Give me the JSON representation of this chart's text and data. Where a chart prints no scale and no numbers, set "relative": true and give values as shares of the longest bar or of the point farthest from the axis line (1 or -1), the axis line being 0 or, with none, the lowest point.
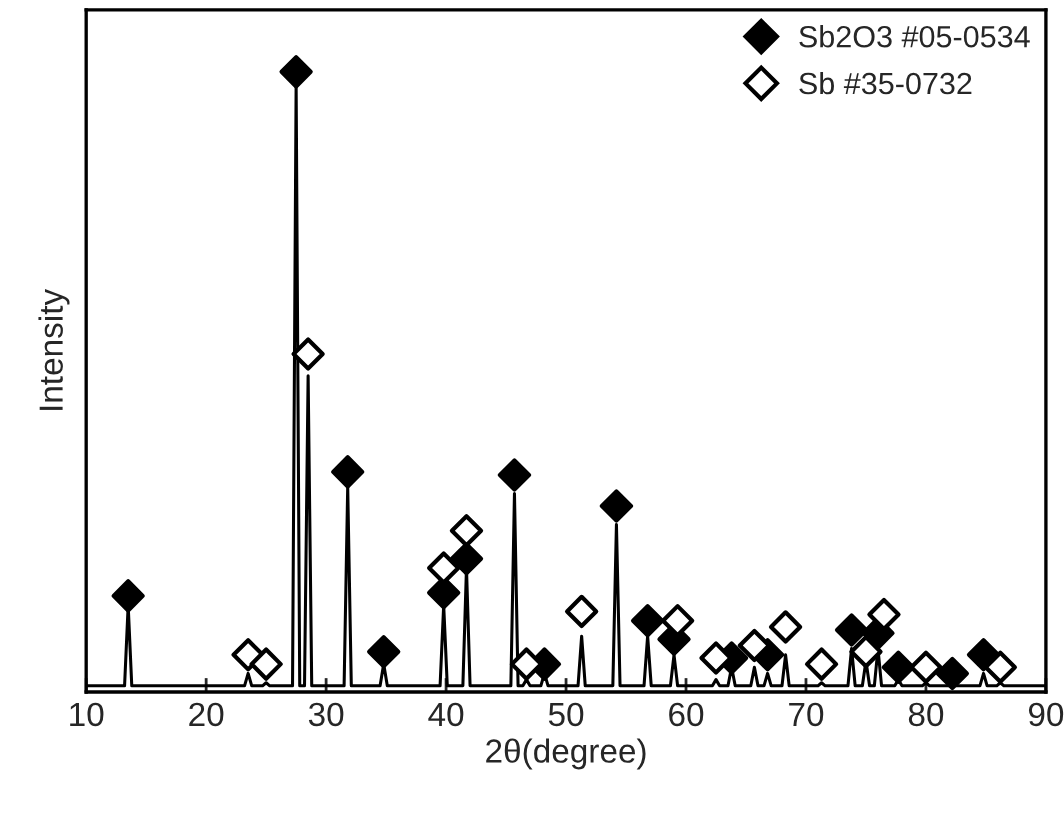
{
  "chart_data": {
    "type": "line",
    "relative": true,
    "xlabel": "2θ(degree)",
    "ylabel": "Intensity",
    "xlim": [
      10,
      90
    ],
    "xticks": [
      10,
      20,
      30,
      40,
      50,
      60,
      70,
      80,
      90
    ],
    "legend": "top right",
    "grid": false,
    "tick_labels": "x",
    "marker": "diamond",
    "series": [
      {
        "color": "#000000",
        "marker": "none",
        "x": [
          10,
          13.2,
          13.5,
          13.8,
          23.2,
          23.5,
          23.8,
          24.7,
          25,
          25.3,
          27.2,
          27.5,
          27.8,
          28.2,
          28.5,
          28.8,
          31.5,
          31.8,
          32.1,
          34.5,
          34.8,
          35.1,
          39.5,
          39.8,
          40.1,
          41.4,
          41.7,
          42,
          45.4,
          45.7,
          46,
          46.4,
          46.7,
          47,
          47.9,
          48.2,
          48.5,
          51,
          51.3,
          51.6,
          53.9,
          54.2,
          54.5,
          56.5,
          56.8,
          57.1,
          58.7,
          59,
          59.3,
          62.2,
          62.5,
          62.8,
          63.5,
          63.8,
          64.1,
          65.4,
          65.7,
          66,
          66.5,
          66.8,
          67.1,
          68,
          68.3,
          68.6,
          71,
          71.3,
          71.6,
          73.5,
          73.8,
          74.1,
          74.7,
          75,
          75.3,
          75.7,
          76,
          76.3,
          77.4,
          77.7,
          78,
          79.7,
          80,
          80.3,
          81.9,
          82.2,
          82.5,
          84.5,
          84.8,
          85.1,
          85.9,
          86.2,
          86.5,
          90
        ],
        "values": [
          0.01,
          0.01,
          0.14,
          0.01,
          0.01,
          0.03,
          0.01,
          0.01,
          0.015,
          0.01,
          0.01,
          0.98,
          0.01,
          0.01,
          0.51,
          0.01,
          0.01,
          0.33,
          0.01,
          0.01,
          0.045,
          0.01,
          0.01,
          0.14,
          0.01,
          0.01,
          0.2,
          0.01,
          0.01,
          0.32,
          0.01,
          0.01,
          0.02,
          0.01,
          0.01,
          0.03,
          0.01,
          0.01,
          0.09,
          0.01,
          0.01,
          0.27,
          0.01,
          0.01,
          0.09,
          0.01,
          0.01,
          0.06,
          0.01,
          0.01,
          0.02,
          0.01,
          0.01,
          0.04,
          0.01,
          0.01,
          0.04,
          0.01,
          0.01,
          0.03,
          0.01,
          0.01,
          0.06,
          0.01,
          0.01,
          0.015,
          0.01,
          0.01,
          0.07,
          0.01,
          0.01,
          0.05,
          0.01,
          0.01,
          0.07,
          0.01,
          0.01,
          0.02,
          0.01,
          0.01,
          0.015,
          0.01,
          0.01,
          0.015,
          0.01,
          0.01,
          0.03,
          0.01,
          0.01,
          0.015,
          0.01,
          0.01
        ]
      },
      {
        "type": "scatter",
        "name": "Sb2O3 #05-0534",
        "color": "#000000",
        "x": [
          13.5,
          27.5,
          31.8,
          34.8,
          39.8,
          41.7,
          45.7,
          48.2,
          54.2,
          56.8,
          59,
          63.8,
          66.8,
          73.8,
          76,
          77.7,
          82.2,
          84.8
        ],
        "values": [
          0.155,
          1.0,
          0.355,
          0.065,
          0.16,
          0.215,
          0.35,
          0.045,
          0.3,
          0.115,
          0.085,
          0.055,
          0.06,
          0.1,
          0.095,
          0.04,
          0.03,
          0.06
        ]
      },
      {
        "type": "scatter",
        "name": "Sb #35-0732",
        "color": "#ffffff",
        "x": [
          23.5,
          25,
          28.5,
          39.8,
          41.7,
          46.7,
          51.3,
          59.3,
          62.5,
          65.7,
          68.3,
          71.3,
          75,
          76.5,
          80,
          86.2
        ],
        "values": [
          0.06,
          0.045,
          0.545,
          0.2,
          0.26,
          0.045,
          0.13,
          0.115,
          0.055,
          0.075,
          0.105,
          0.045,
          0.065,
          0.125,
          0.04,
          0.04
        ]
      }
    ]
  }
}
